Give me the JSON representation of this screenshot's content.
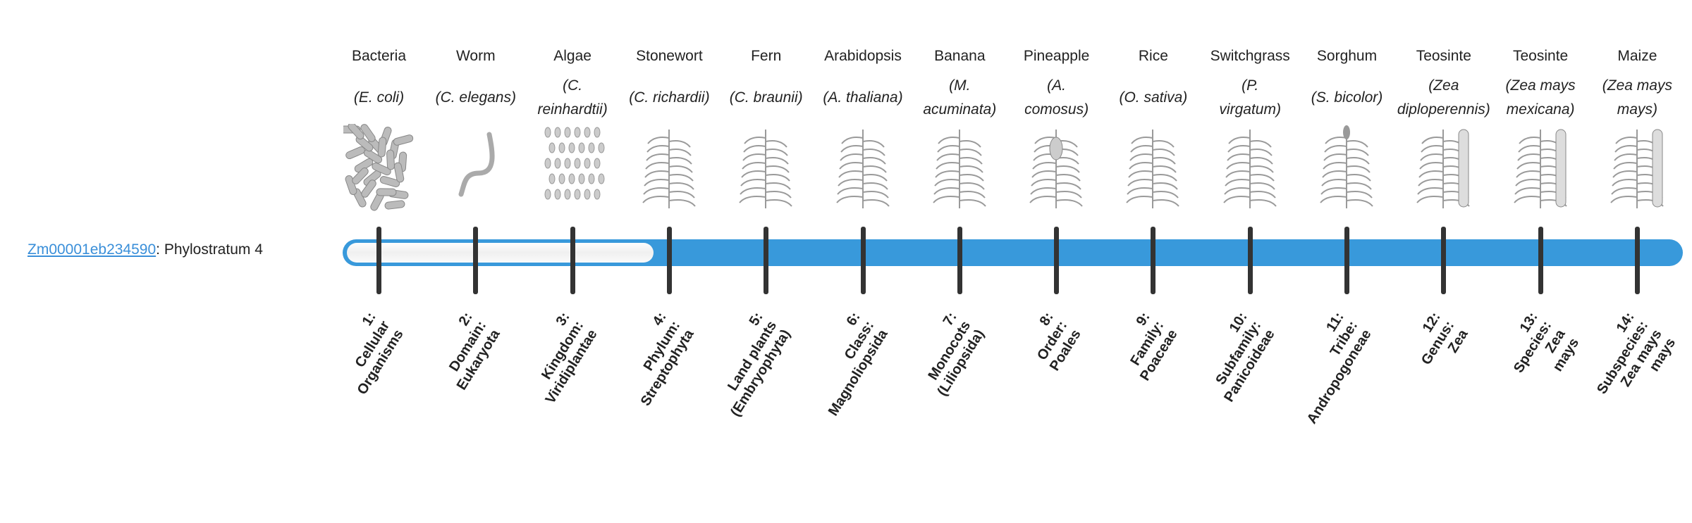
{
  "gene": {
    "id": "Zm00001eb234590",
    "separator": ": ",
    "status": "Phylostratum 4"
  },
  "phylostratum": {
    "value": 4,
    "total": 14
  },
  "colors": {
    "bar": "#3899db",
    "link": "#3a8fd9",
    "tick": "#333333"
  },
  "strata": [
    {
      "organism": "Bacteria",
      "species": "(E. coli)",
      "rank": "1:\nCellular\nOrganisms",
      "icon": "bacteria-icon"
    },
    {
      "organism": "Worm",
      "species": "(C. elegans)",
      "rank": "2:\nDomain:\nEukaryota",
      "icon": "worm-icon"
    },
    {
      "organism": "Algae",
      "species": "(C.\nreinhardtii)",
      "rank": "3:\nKingdom:\nViridiplantae",
      "icon": "algae-icon"
    },
    {
      "organism": "Stonewort",
      "species": "(C. richardii)",
      "rank": "4:\nPhylum:\nStreptophyta",
      "icon": "stonewort-icon"
    },
    {
      "organism": "Fern",
      "species": "(C. braunii)",
      "rank": "5:\nLand plants\n(Embryophyta)",
      "icon": "fern-icon"
    },
    {
      "organism": "Arabidopsis",
      "species": "(A. thaliana)",
      "rank": "6:\nClass:\nMagnoliopsida",
      "icon": "arabidopsis-icon"
    },
    {
      "organism": "Banana",
      "species": "(M.\nacuminata)",
      "rank": "7:\nMonocots\n(Liliopsida)",
      "icon": "banana-icon"
    },
    {
      "organism": "Pineapple",
      "species": "(A.\ncomosus)",
      "rank": "8:\nOrder:\nPoales",
      "icon": "pineapple-icon"
    },
    {
      "organism": "Rice",
      "species": "(O. sativa)",
      "rank": "9:\nFamily:\nPoaceae",
      "icon": "rice-icon"
    },
    {
      "organism": "Switchgrass",
      "species": "(P.\nvirgatum)",
      "rank": "10:\nSubfamily:\nPanicoideae",
      "icon": "switchgrass-icon"
    },
    {
      "organism": "Sorghum",
      "species": "(S. bicolor)",
      "rank": "11:\nTribe:\nAndropogoneae",
      "icon": "sorghum-icon"
    },
    {
      "organism": "Teosinte",
      "species": "(Zea\ndiploperennis)",
      "rank": "12:\nGenus:\nZea",
      "icon": "teosinte-icon"
    },
    {
      "organism": "Teosinte",
      "species": "(Zea mays\nmexicana)",
      "rank": "13:\nSpecies:\nZea\nmays",
      "icon": "teosinte-icon"
    },
    {
      "organism": "Maize",
      "species": "(Zea mays\nmays)",
      "rank": "14:\nSubspecies:\nZea mays\nmays",
      "icon": "maize-icon"
    }
  ]
}
